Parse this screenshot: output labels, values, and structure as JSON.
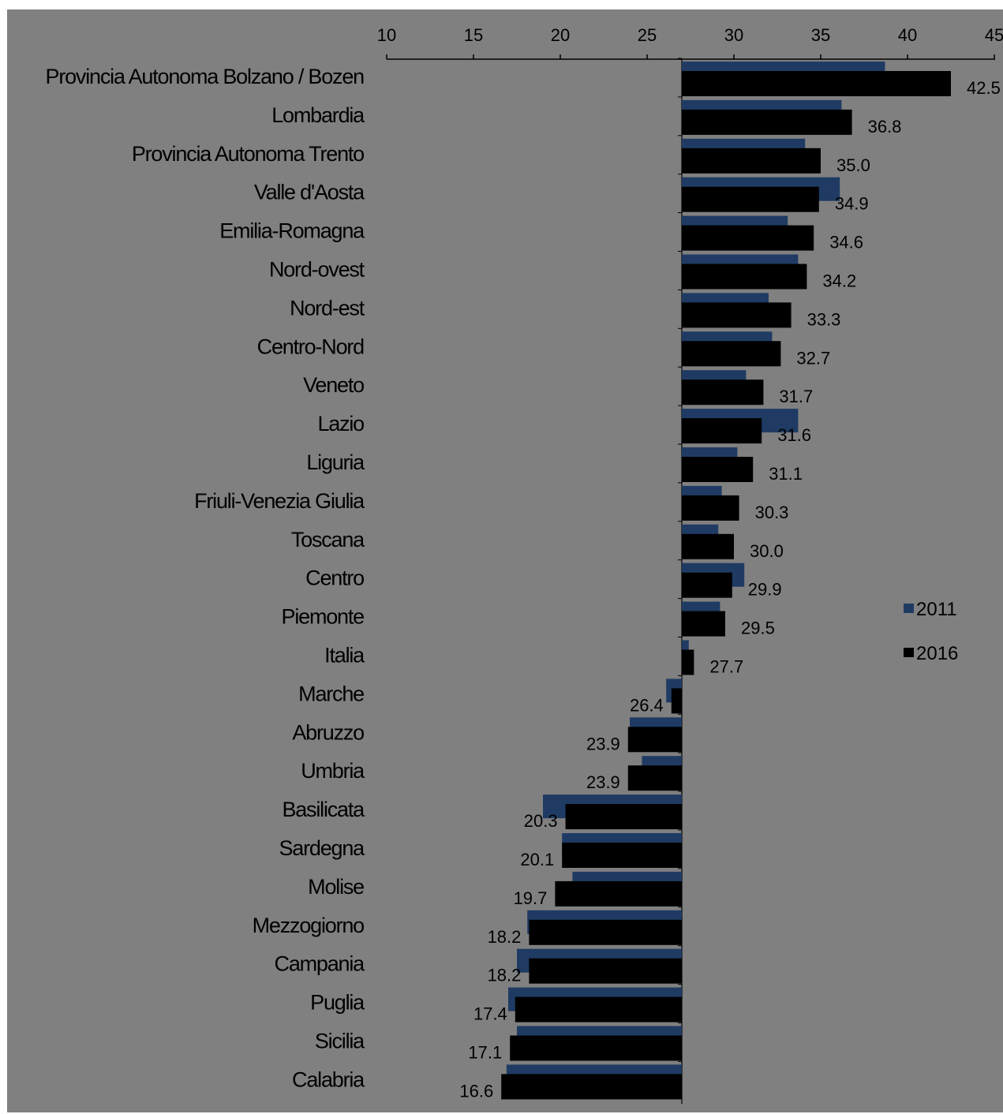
{
  "chart_data": {
    "type": "bar",
    "orientation": "horizontal",
    "title": "",
    "xlabel": "",
    "ylabel": "",
    "xlim": [
      10,
      45
    ],
    "xticks": [
      10,
      15,
      20,
      25,
      30,
      35,
      40,
      45
    ],
    "baseline": 27,
    "grid": false,
    "legend_position": "right",
    "categories": [
      "Provincia Autonoma Bolzano / Bozen",
      "Lombardia",
      "Provincia Autonoma Trento",
      "Valle d'Aosta",
      "Emilia-Romagna",
      "Nord-ovest",
      "Nord-est",
      "Centro-Nord",
      "Veneto",
      "Lazio",
      "Liguria",
      "Friuli-Venezia Giulia",
      "Toscana",
      "Centro",
      "Piemonte",
      "Italia",
      "Marche",
      "Abruzzo",
      "Umbria",
      "Basilicata",
      "Sardegna",
      "Molise",
      "Mezzogiorno",
      "Campania",
      "Puglia",
      "Sicilia",
      "Calabria"
    ],
    "series": [
      {
        "name": "2011",
        "color": "#1f3b63",
        "values": [
          38.7,
          36.2,
          34.1,
          36.1,
          33.1,
          33.7,
          32.0,
          32.2,
          30.7,
          33.7,
          30.2,
          29.3,
          29.1,
          30.6,
          29.2,
          27.4,
          26.1,
          24.0,
          24.7,
          19.0,
          20.1,
          20.7,
          18.1,
          17.5,
          17.0,
          17.5,
          16.9
        ],
        "labels": []
      },
      {
        "name": "2016",
        "color": "#000000",
        "values": [
          42.5,
          36.8,
          35.0,
          34.9,
          34.6,
          34.2,
          33.3,
          32.7,
          31.7,
          31.6,
          31.1,
          30.3,
          30.0,
          29.9,
          29.5,
          27.7,
          26.4,
          23.9,
          23.9,
          20.3,
          20.1,
          19.7,
          18.2,
          18.2,
          17.4,
          17.1,
          16.6
        ],
        "labels": [
          "42.5",
          "36.8",
          "35.0",
          "34.9",
          "34.6",
          "34.2",
          "33.3",
          "32.7",
          "31.7",
          "31.6",
          "31.1",
          "30.3",
          "30.0",
          "29.9",
          "29.5",
          "27.7",
          "26.4",
          "23.9",
          "23.9",
          "20.3",
          "20.1",
          "19.7",
          "18.2",
          "18.2",
          "17.4",
          "17.1",
          "16.6"
        ]
      }
    ]
  },
  "colors": {
    "background": "#808080",
    "series_2011": "#1f3b63",
    "series_2016": "#000000"
  }
}
